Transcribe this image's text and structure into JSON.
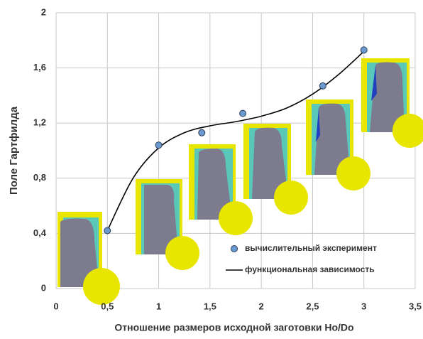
{
  "chart_data": {
    "type": "scatter",
    "x_label": "Отношение размеров исходной заготовки Ho/Do",
    "y_label": "Поле Гартфилда",
    "xlim": [
      0,
      3.5
    ],
    "xticks": [
      0,
      {
        "value": 0.5,
        "label": "0,5"
      },
      1,
      {
        "value": 1.5,
        "label": "1,5"
      },
      2,
      {
        "value": 2.5,
        "label": "2,5"
      },
      3,
      {
        "value": 3.5,
        "label": "3,5"
      }
    ],
    "ylim": [
      0,
      2
    ],
    "yticks": [
      0,
      {
        "value": 0.4,
        "label": "0,4"
      },
      {
        "value": 0.8,
        "label": "0,8"
      },
      {
        "value": 1.2,
        "label": "1,2"
      },
      {
        "value": 1.6,
        "label": "1,6"
      },
      2
    ],
    "grid": true,
    "legend": "lower right",
    "series": [
      {
        "name": "вычислительный эксперимент",
        "type": "scatter",
        "color": "#6a98cf",
        "x": [
          0.5,
          1,
          1.42,
          1.82,
          2.6,
          3
        ],
        "values": [
          0.42,
          1.04,
          1.13,
          1.27,
          1.47,
          1.73
        ]
      },
      {
        "name": "функциональная зависимость",
        "type": "line",
        "color": "#000000",
        "x": [
          0.5,
          0.75,
          1,
          1.25,
          1.5,
          1.75,
          2,
          2.25,
          2.5,
          2.75,
          3
        ],
        "values": [
          0.42,
          0.8,
          1.02,
          1.13,
          1.18,
          1.21,
          1.25,
          1.31,
          1.41,
          1.55,
          1.72
        ]
      }
    ]
  }
}
